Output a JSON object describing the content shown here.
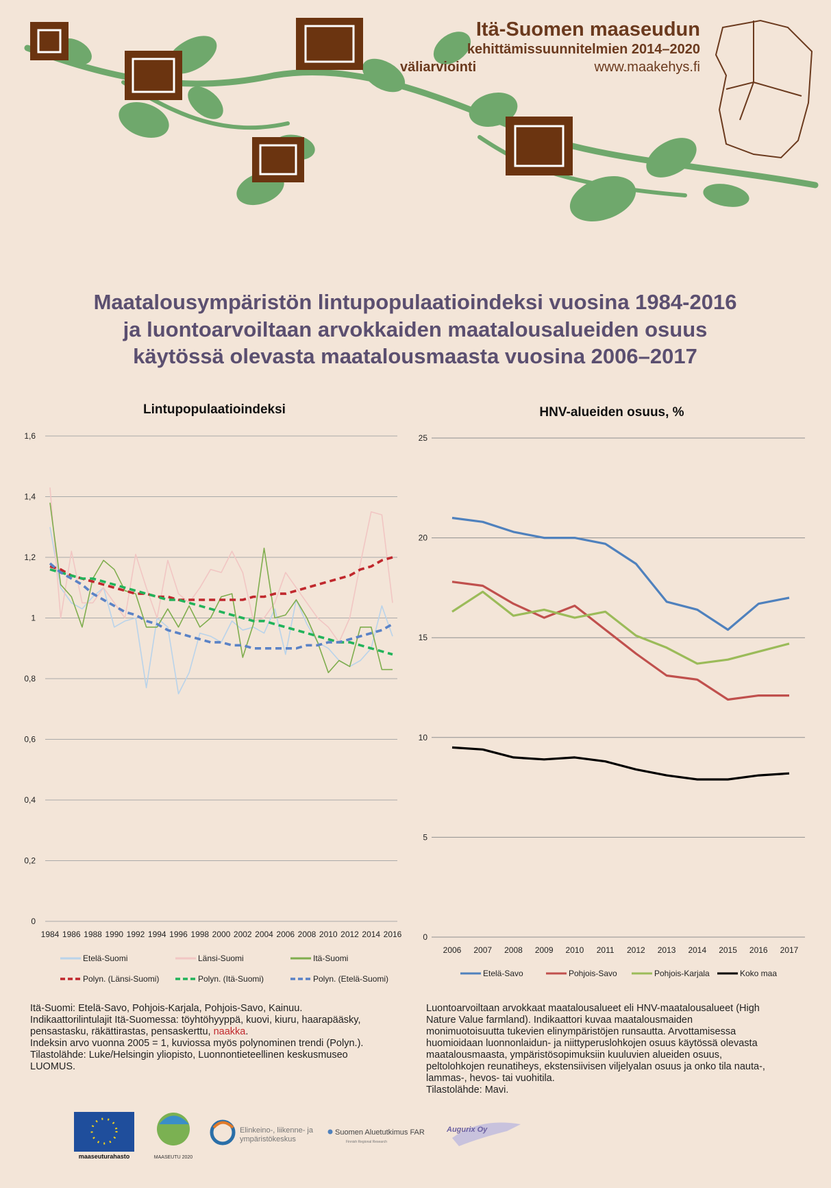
{
  "header": {
    "title": "Itä-Suomen maaseudun",
    "subtitle": "kehittämissuunnitelmien 2014–2020",
    "subtitle2": "väliarviointi",
    "url": "www.maakehys.fi"
  },
  "main_title": [
    "Maatalousympäristön lintupopulaatioindeksi vuosina 1984-2016",
    "ja luontoarvoiltaan arvokkaiden maatalousalueiden osuus",
    "käytössä olevasta maatalousmaasta vuosina 2006–2017"
  ],
  "chart_data": [
    {
      "type": "line",
      "title": "Lintupopulaatioindeksi",
      "categories": [
        "1984",
        null,
        "1986",
        null,
        "1988",
        null,
        "1990",
        null,
        "1992",
        null,
        "1994",
        null,
        "1996",
        null,
        "1998",
        null,
        "2000",
        null,
        "2002",
        null,
        "2004",
        null,
        "2006",
        null,
        "2008",
        null,
        "2010",
        null,
        "2012",
        null,
        "2014",
        null,
        "2016"
      ],
      "ylim": [
        0,
        1.6
      ],
      "yticks": [
        0,
        {
          "value": 0.2,
          "label": "0,2"
        },
        {
          "value": 0.4,
          "label": "0,4"
        },
        {
          "value": 0.6,
          "label": "0,6"
        },
        {
          "value": 0.8,
          "label": "0,8"
        },
        1,
        {
          "value": 1.2,
          "label": "1,2"
        },
        {
          "value": 1.4,
          "label": "1,4"
        },
        {
          "value": 1.6,
          "label": "1,6"
        }
      ],
      "grid": true,
      "series": [
        {
          "name": "Etelä-Suomi",
          "color": "#b9d3ea",
          "values": [
            1.3,
            1.1,
            1.05,
            1.03,
            1.07,
            1.1,
            0.97,
            0.99,
            1.0,
            0.77,
            1.0,
            0.97,
            0.75,
            0.82,
            0.95,
            0.94,
            0.92,
            0.99,
            0.96,
            0.97,
            0.95,
            1.03,
            0.88,
            1.06,
            0.98,
            0.92,
            0.9,
            0.86,
            0.84,
            0.86,
            0.9,
            1.04,
            0.94
          ]
        },
        {
          "name": "Länsi-Suomi",
          "color": "#f1c6c3",
          "values": [
            1.43,
            1.0,
            1.22,
            1.05,
            1.05,
            1.1,
            1.05,
            1.0,
            1.21,
            1.1,
            1.0,
            1.19,
            1.08,
            1.05,
            1.1,
            1.16,
            1.15,
            1.22,
            1.15,
            0.99,
            1.0,
            1.05,
            1.15,
            1.1,
            1.05,
            1.0,
            0.97,
            0.92,
            1.0,
            1.18,
            1.35,
            1.34,
            1.05
          ]
        },
        {
          "name": "Itä-Suomi",
          "color": "#7fad4e",
          "values": [
            1.38,
            1.11,
            1.07,
            0.97,
            1.13,
            1.19,
            1.16,
            1.09,
            1.08,
            0.97,
            0.97,
            1.03,
            0.97,
            1.04,
            0.97,
            1.0,
            1.07,
            1.08,
            0.87,
            0.98,
            1.23,
            1.0,
            1.01,
            1.06,
            1.0,
            0.92,
            0.82,
            0.86,
            0.84,
            0.97,
            0.97,
            0.83,
            0.83
          ]
        },
        {
          "name": "Polyn. (Länsi-Suomi)",
          "color": "#c0282d",
          "style": "dashed",
          "values": [
            1.17,
            1.16,
            1.14,
            1.13,
            1.12,
            1.11,
            1.1,
            1.09,
            1.08,
            1.08,
            1.07,
            1.07,
            1.06,
            1.06,
            1.06,
            1.06,
            1.06,
            1.06,
            1.06,
            1.07,
            1.07,
            1.08,
            1.08,
            1.09,
            1.1,
            1.11,
            1.12,
            1.13,
            1.14,
            1.16,
            1.17,
            1.19,
            1.2
          ]
        },
        {
          "name": "Polyn. (Itä-Suomi)",
          "color": "#22b35a",
          "style": "dashed",
          "values": [
            1.16,
            1.15,
            1.14,
            1.13,
            1.13,
            1.12,
            1.11,
            1.1,
            1.09,
            1.08,
            1.07,
            1.06,
            1.06,
            1.05,
            1.04,
            1.03,
            1.02,
            1.01,
            1.0,
            0.99,
            0.99,
            0.98,
            0.97,
            0.96,
            0.95,
            0.94,
            0.93,
            0.92,
            0.92,
            0.91,
            0.9,
            0.89,
            0.88
          ]
        },
        {
          "name": "Polyn. (Etelä-Suomi)",
          "color": "#5a82c6",
          "style": "dashed",
          "values": [
            1.18,
            1.15,
            1.13,
            1.11,
            1.08,
            1.06,
            1.04,
            1.02,
            1.01,
            0.99,
            0.98,
            0.96,
            0.95,
            0.94,
            0.93,
            0.92,
            0.92,
            0.91,
            0.91,
            0.9,
            0.9,
            0.9,
            0.9,
            0.9,
            0.91,
            0.91,
            0.92,
            0.92,
            0.93,
            0.94,
            0.95,
            0.96,
            0.98
          ]
        }
      ]
    },
    {
      "type": "line",
      "title": "HNV-alueiden osuus, %",
      "categories": [
        "2006",
        "2007",
        "2008",
        "2009",
        "2010",
        "2011",
        "2012",
        "2013",
        "2014",
        "2015",
        "2016",
        "2017"
      ],
      "ylim": [
        0,
        25
      ],
      "yticks": [
        0,
        5,
        10,
        15,
        20,
        25
      ],
      "grid": true,
      "series": [
        {
          "name": "Etelä-Savo",
          "color": "#4f81bd",
          "values": [
            21.0,
            20.8,
            20.3,
            20.0,
            20.0,
            19.7,
            18.7,
            16.8,
            16.4,
            15.4,
            16.7,
            17.0
          ]
        },
        {
          "name": "Pohjois-Savo",
          "color": "#c0504d",
          "values": [
            17.8,
            17.6,
            16.7,
            16.0,
            16.6,
            15.4,
            14.2,
            13.1,
            12.9,
            11.9,
            12.1,
            12.1
          ]
        },
        {
          "name": "Pohjois-Karjala",
          "color": "#9bbb59",
          "values": [
            16.3,
            17.3,
            16.1,
            16.4,
            16.0,
            16.3,
            15.1,
            14.5,
            13.7,
            13.9,
            14.3,
            14.7
          ]
        },
        {
          "name": "Koko maa",
          "color": "#000000",
          "values": [
            9.5,
            9.4,
            9.0,
            8.9,
            9.0,
            8.8,
            8.4,
            8.1,
            7.9,
            7.9,
            8.1,
            8.2
          ]
        }
      ]
    }
  ],
  "left_note": [
    "Itä-Suomi: Etelä-Savo, Pohjois-Karjala, Pohjois-Savo, Kainuu.",
    "Indikaattorilintulajit Itä-Suomessa: töyhtöhyyppä, kuovi, kiuru, haarapääsky,",
    "pensastasku, räkättirastas, pensaskerttu,",
    "naakka",
    ".",
    "Indeksin arvo vuonna 2005 = 1, kuviossa myös polynominen trendi (Polyn.).",
    "Tilastolähde: Luke/Helsingin yliopisto, Luonnontieteellinen keskusmuseo",
    "LUOMUS."
  ],
  "right_note": [
    "Luontoarvoiltaan arvokkaat maatalousalueet eli HNV-maatalousalueet (High",
    "Nature Value farmland). Indikaattori kuvaa maatalousmaiden",
    "monimuotoisuutta tukevien elinympäristöjen runsautta. Arvottamisessa",
    "huomioidaan luonnonlaidun- ja niittyperuslohkojen osuus käytössä olevasta",
    "maatalousmaasta, ympäristösopimuksiin kuuluvien alueiden osuus,",
    "peltolohkojen reunatiheys, ekstensiivisen viljelyalan osuus ja onko tila nauta-,",
    "lammas-, hevos- tai vuohitila.",
    "Tilastolähde: Mavi."
  ],
  "logos": {
    "eu": "maaseuturahasto",
    "maaseutu": "MAASEUTU 2020",
    "ely": [
      "Elinkeino-, liikenne- ja",
      "ympäristökeskus"
    ],
    "far": "Suomen Aluetutkimus FAR",
    "far_sub": "Finnish Regional Research",
    "augurix": "Augurix Oy"
  }
}
